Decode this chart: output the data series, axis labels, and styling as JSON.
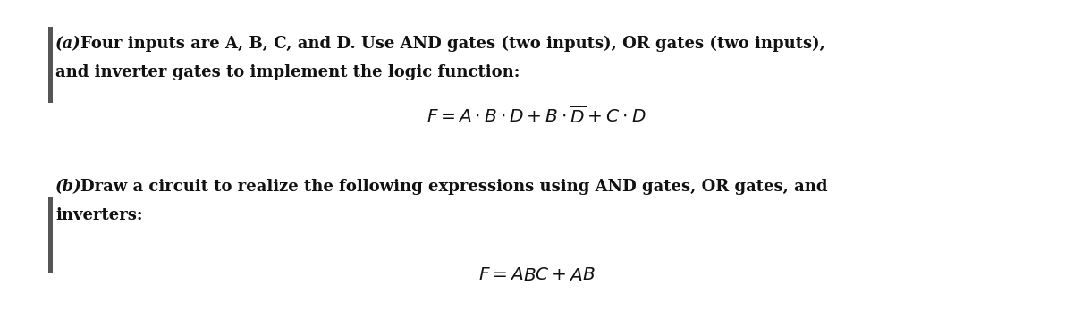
{
  "background_color": "#ffffff",
  "left_bar_color": "#555555",
  "text_color": "#111111",
  "part_a_label": "(a)",
  "part_a_line1": "   Four inputs are A, B, C, and D. Use AND gates (two inputs), OR gates (two inputs),",
  "part_a_line2": "and inverter gates to implement the logic function:",
  "part_b_label": "(b)",
  "part_b_line1": " Draw a circuit to realize the following expressions using AND gates, OR gates, and",
  "part_b_line2": "inverters:",
  "font_size_body": 13.0,
  "font_size_formula": 14.5,
  "fig_width": 12.0,
  "fig_height": 3.67,
  "dpi": 100
}
